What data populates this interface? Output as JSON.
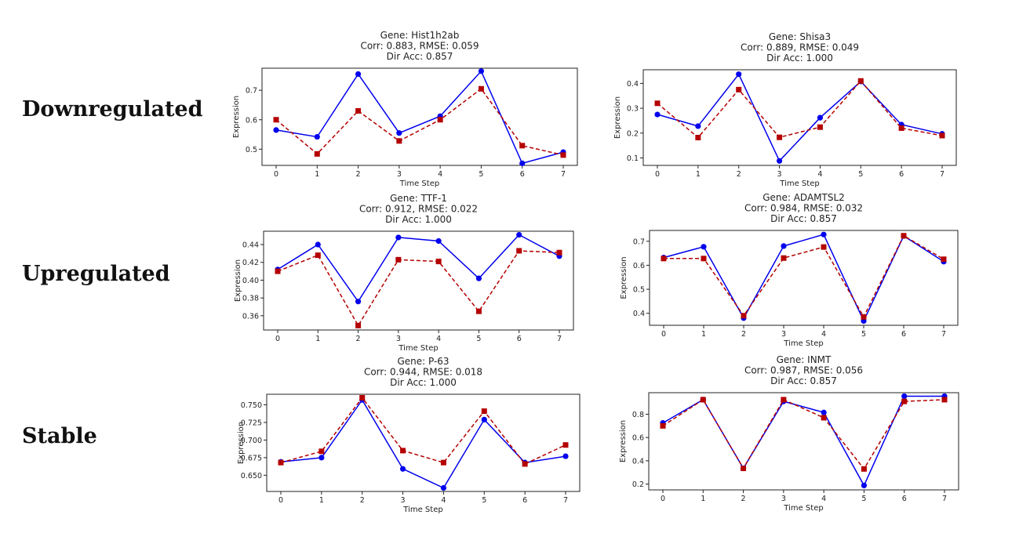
{
  "row_labels": [
    "Downregulated",
    "Upregulated",
    "Stable"
  ],
  "colors": {
    "actual": "#0000ee",
    "predicted": "#b50000"
  },
  "chart_data": [
    {
      "type": "line",
      "title_lines": [
        "Gene: Hist1h2ab",
        "Corr: 0.883, RMSE: 0.059",
        "Dir Acc: 0.857"
      ],
      "xlabel": "Time Step",
      "ylabel": "Expression",
      "x": [
        0,
        1,
        2,
        3,
        4,
        5,
        6,
        7
      ],
      "yticks": [
        0.5,
        0.6,
        0.7
      ],
      "ylim": [
        0.445,
        0.775
      ],
      "series": [
        {
          "style": "solid-circle",
          "values": [
            0.565,
            0.542,
            0.755,
            0.555,
            0.612,
            0.765,
            0.452,
            0.49
          ]
        },
        {
          "style": "dashed-square",
          "values": [
            0.6,
            0.484,
            0.63,
            0.528,
            0.6,
            0.705,
            0.512,
            0.48
          ]
        }
      ]
    },
    {
      "type": "line",
      "title_lines": [
        "Gene: Shisa3",
        "Corr: 0.889, RMSE: 0.049",
        "Dir Acc: 1.000"
      ],
      "xlabel": "Time Step",
      "ylabel": "Expression",
      "x": [
        0,
        1,
        2,
        3,
        4,
        5,
        6,
        7
      ],
      "yticks": [
        0.1,
        0.2,
        0.3,
        0.4
      ],
      "ylim": [
        0.07,
        0.455
      ],
      "series": [
        {
          "style": "solid-circle",
          "values": [
            0.275,
            0.228,
            0.437,
            0.088,
            0.262,
            0.408,
            0.234,
            0.197
          ]
        },
        {
          "style": "dashed-square",
          "values": [
            0.32,
            0.182,
            0.375,
            0.183,
            0.224,
            0.41,
            0.22,
            0.19
          ]
        }
      ]
    },
    {
      "type": "line",
      "title_lines": [
        "Gene: TTF-1",
        "Corr: 0.912, RMSE: 0.022",
        "Dir Acc: 1.000"
      ],
      "xlabel": "Time Step",
      "ylabel": "Expression",
      "x": [
        0,
        1,
        2,
        3,
        4,
        5,
        6,
        7
      ],
      "yticks": [
        0.36,
        0.38,
        0.4,
        0.42,
        0.44
      ],
      "ytick_labels": [
        "0.36",
        "0.38",
        "0.40",
        "0.42",
        "0.44"
      ],
      "ylim": [
        0.344,
        0.455
      ],
      "series": [
        {
          "style": "solid-circle",
          "values": [
            0.412,
            0.44,
            0.376,
            0.448,
            0.444,
            0.402,
            0.451,
            0.427
          ]
        },
        {
          "style": "dashed-square",
          "values": [
            0.41,
            0.428,
            0.349,
            0.423,
            0.421,
            0.365,
            0.433,
            0.431
          ]
        }
      ]
    },
    {
      "type": "line",
      "title_lines": [
        "Gene: ADAMTSL2",
        "Corr: 0.984, RMSE: 0.032",
        "Dir Acc: 0.857"
      ],
      "xlabel": "Time Step",
      "ylabel": "Expression",
      "x": [
        0,
        1,
        2,
        3,
        4,
        5,
        6,
        7
      ],
      "yticks": [
        0.4,
        0.5,
        0.6,
        0.7
      ],
      "ylim": [
        0.35,
        0.745
      ],
      "series": [
        {
          "style": "solid-circle",
          "values": [
            0.632,
            0.677,
            0.38,
            0.68,
            0.728,
            0.368,
            0.722,
            0.615
          ]
        },
        {
          "style": "dashed-square",
          "values": [
            0.628,
            0.628,
            0.39,
            0.63,
            0.676,
            0.385,
            0.723,
            0.625
          ]
        }
      ]
    },
    {
      "type": "line",
      "title_lines": [
        "Gene: P-63",
        "Corr: 0.944, RMSE: 0.018",
        "Dir Acc: 1.000"
      ],
      "xlabel": "Time Step",
      "ylabel": "Expression",
      "x": [
        0,
        1,
        2,
        3,
        4,
        5,
        6,
        7
      ],
      "yticks": [
        0.65,
        0.675,
        0.7,
        0.725,
        0.75
      ],
      "ytick_labels": [
        "0.650",
        "0.675",
        "0.700",
        "0.725",
        "0.750"
      ],
      "ylim": [
        0.627,
        0.765
      ],
      "series": [
        {
          "style": "solid-circle",
          "values": [
            0.669,
            0.675,
            0.757,
            0.659,
            0.632,
            0.729,
            0.668,
            0.677
          ]
        },
        {
          "style": "dashed-square",
          "values": [
            0.668,
            0.684,
            0.76,
            0.685,
            0.668,
            0.741,
            0.666,
            0.693
          ]
        }
      ]
    },
    {
      "type": "line",
      "title_lines": [
        "Gene: INMT",
        "Corr: 0.987, RMSE: 0.056",
        "Dir Acc: 0.857"
      ],
      "xlabel": "Time Step",
      "ylabel": "Expression",
      "x": [
        0,
        1,
        2,
        3,
        4,
        5,
        6,
        7
      ],
      "yticks": [
        0.2,
        0.4,
        0.6,
        0.8
      ],
      "ylim": [
        0.15,
        0.985
      ],
      "series": [
        {
          "style": "solid-circle",
          "values": [
            0.725,
            0.925,
            0.335,
            0.91,
            0.815,
            0.188,
            0.955,
            0.955
          ]
        },
        {
          "style": "dashed-square",
          "values": [
            0.7,
            0.925,
            0.335,
            0.925,
            0.77,
            0.33,
            0.91,
            0.925
          ]
        }
      ]
    }
  ]
}
